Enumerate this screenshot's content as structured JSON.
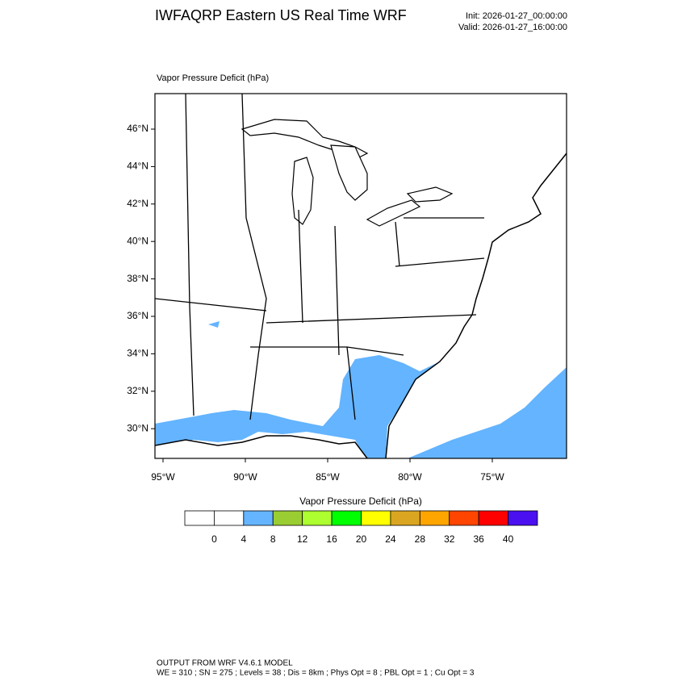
{
  "header": {
    "title": "IWFAQRP Eastern US Real Time WRF",
    "init": "Init: 2026-01-27_00:00:00",
    "valid": "Valid: 2026-01-27_16:00:00"
  },
  "map": {
    "field_title": "Vapor Pressure Deficit   (hPa)",
    "lat_labels": [
      "46°N",
      "44°N",
      "42°N",
      "40°N",
      "38°N",
      "36°N",
      "34°N",
      "32°N",
      "30°N"
    ],
    "lon_labels": [
      "95°W",
      "90°W",
      "85°W",
      "80°W",
      "75°W"
    ]
  },
  "colorbar": {
    "title": "Vapor Pressure Deficit  (hPa)",
    "labels": [
      0,
      4,
      8,
      12,
      16,
      20,
      24,
      28,
      32,
      36,
      40
    ],
    "colors": [
      "#ffffff",
      "#ffffff",
      "#64b4ff",
      "#9acd32",
      "#adff2f",
      "#00ff00",
      "#ffff00",
      "#daa520",
      "#ffa500",
      "#ff4500",
      "#ff0000",
      "#4a10f0"
    ]
  },
  "footer": {
    "line1": "OUTPUT FROM WRF V4.6.1 MODEL",
    "line2": "WE = 310 ; SN = 275 ; Levels = 38 ; Dis = 8km ; Phys Opt = 8 ; PBL Opt = 1 ; Cu Opt = 3"
  }
}
